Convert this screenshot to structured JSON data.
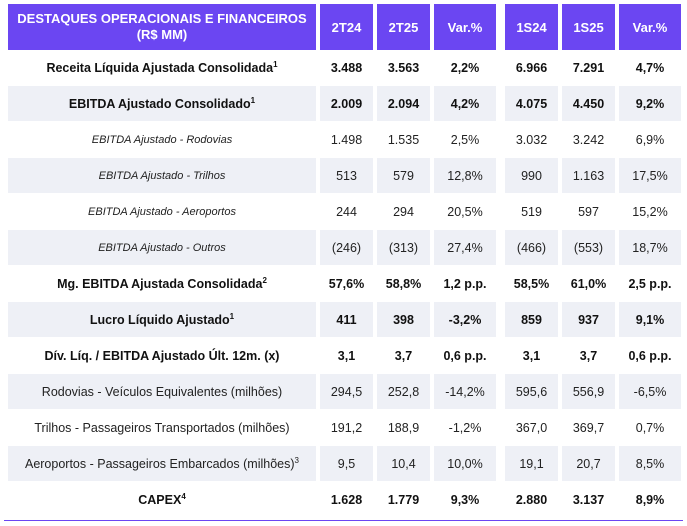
{
  "header": {
    "title_line1": "DESTAQUES OPERACIONAIS E FINANCEIROS",
    "title_line2": "(R$ MM)",
    "columns": [
      "2T24",
      "2T25",
      "Var.%",
      "1S24",
      "1S25",
      "Var.%"
    ]
  },
  "rows": [
    {
      "label": "Receita Líquida Ajustada Consolidada",
      "sup": "1",
      "values": [
        "3.488",
        "3.563",
        "2,2%",
        "6.966",
        "7.291",
        "4,7%"
      ]
    },
    {
      "label": "EBITDA Ajustado Consolidado",
      "sup": "1",
      "values": [
        "2.009",
        "2.094",
        "4,2%",
        "4.075",
        "4.450",
        "9,2%"
      ]
    },
    {
      "label": "EBITDA Ajustado - Rodovias",
      "sup": "",
      "values": [
        "1.498",
        "1.535",
        "2,5%",
        "3.032",
        "3.242",
        "6,9%"
      ]
    },
    {
      "label": "EBITDA Ajustado - Trilhos",
      "sup": "",
      "values": [
        "513",
        "579",
        "12,8%",
        "990",
        "1.163",
        "17,5%"
      ]
    },
    {
      "label": "EBITDA Ajustado - Aeroportos",
      "sup": "",
      "values": [
        "244",
        "294",
        "20,5%",
        "519",
        "597",
        "15,2%"
      ]
    },
    {
      "label": "EBITDA Ajustado - Outros",
      "sup": "",
      "values": [
        "(246)",
        "(313)",
        "27,4%",
        "(466)",
        "(553)",
        "18,7%"
      ]
    },
    {
      "label": "Mg. EBITDA Ajustada Consolidada",
      "sup": "2",
      "values": [
        "57,6%",
        "58,8%",
        "1,2 p.p.",
        "58,5%",
        "61,0%",
        "2,5 p.p."
      ]
    },
    {
      "label": "Lucro Líquido Ajustado",
      "sup": "1",
      "values": [
        "411",
        "398",
        "-3,2%",
        "859",
        "937",
        "9,1%"
      ]
    },
    {
      "label": "Dív. Líq. / EBITDA Ajustado Últ. 12m. (x)",
      "sup": "",
      "values": [
        "3,1",
        "3,7",
        "0,6 p.p.",
        "3,1",
        "3,7",
        "0,6 p.p."
      ]
    },
    {
      "label": "Rodovias - Veículos Equivalentes (milhões)",
      "sup": "",
      "values": [
        "294,5",
        "252,8",
        "-14,2%",
        "595,6",
        "556,9",
        "-6,5%"
      ]
    },
    {
      "label": "Trilhos - Passageiros Transportados (milhões)",
      "sup": "",
      "values": [
        "191,2",
        "188,9",
        "-1,2%",
        "367,0",
        "369,7",
        "0,7%"
      ]
    },
    {
      "label": "Aeroportos - Passageiros Embarcados (milhões)",
      "sup": "3",
      "values": [
        "9,5",
        "10,4",
        "10,0%",
        "19,1",
        "20,7",
        "8,5%"
      ]
    },
    {
      "label": "CAPEX",
      "sup": "4",
      "values": [
        "1.628",
        "1.779",
        "9,3%",
        "2.880",
        "3.137",
        "8,9%"
      ]
    }
  ],
  "colors": {
    "header_bg": "#6b46f2",
    "header_text": "#ffffff",
    "shade_bg": "#eef0f6"
  }
}
